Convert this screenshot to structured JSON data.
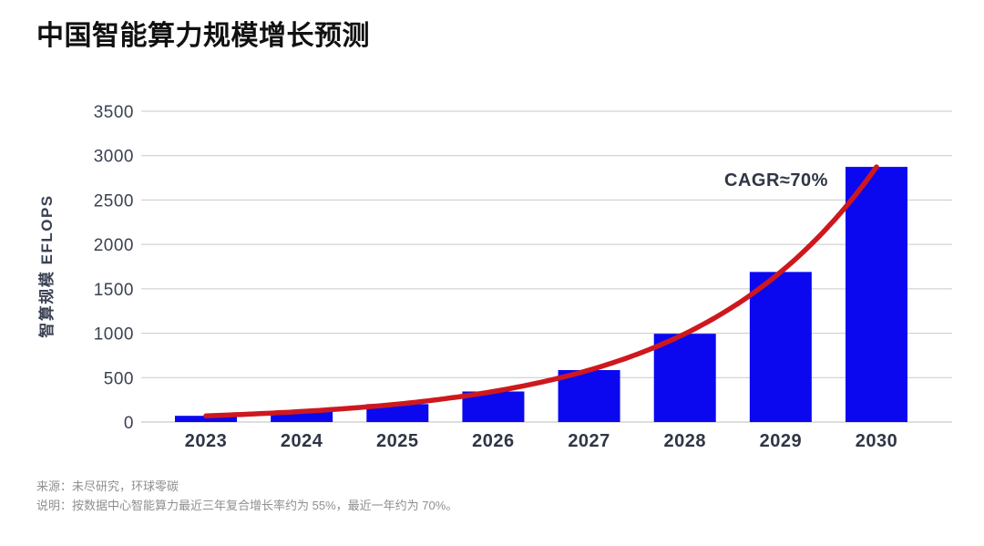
{
  "title": "中国智能算力规模增长预测",
  "chart_data": {
    "type": "bar",
    "title": "中国智能算力规模增长预测",
    "categories": [
      "2023",
      "2024",
      "2025",
      "2026",
      "2027",
      "2028",
      "2029",
      "2030"
    ],
    "values": [
      70,
      119,
      202,
      344,
      585,
      994,
      1690,
      2873
    ],
    "xlabel": "",
    "ylabel": "智算规模 EFLOPS",
    "ylim": [
      0,
      3500
    ],
    "yticks": [
      0,
      500,
      1000,
      1500,
      2000,
      2500,
      3000,
      3500
    ],
    "grid": true,
    "legend_position": "none",
    "trend_line": {
      "type": "exponential",
      "label": "CAGR≈70%"
    }
  },
  "footnotes": {
    "source": "来源：未尽研究，环球零碳",
    "note": "说明：按数据中心智能算力最近三年复合增长率约为 55%，最近一年约为 70%。"
  },
  "colors": {
    "bar": "#0b08f0",
    "trend": "#ce181e",
    "axis_text": "#3a4152",
    "x_label_text": "#2f3644",
    "grid_line": "#c9c9c9",
    "baseline": "#bdbdbd",
    "title_text": "#111111",
    "footnote_text": "#8f8f8f"
  }
}
